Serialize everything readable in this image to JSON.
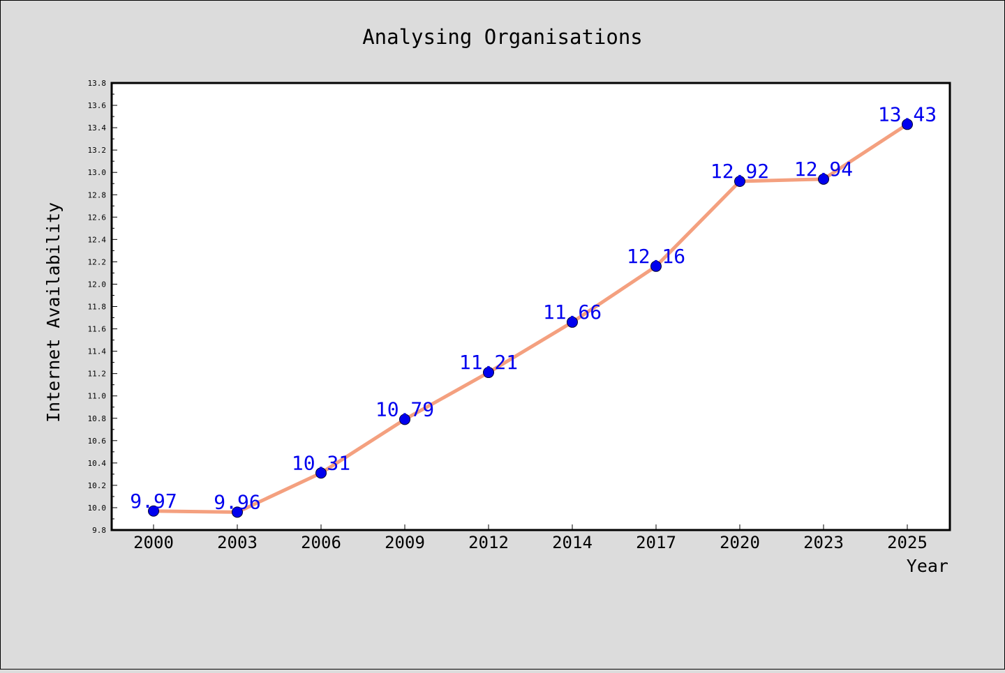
{
  "chart_data": {
    "type": "line",
    "title": "Analysing Organisations",
    "xlabel": "Year",
    "ylabel": "Internet Availability",
    "categories": [
      "2000",
      "2003",
      "2006",
      "2009",
      "2012",
      "2014",
      "2017",
      "2020",
      "2023",
      "2025"
    ],
    "series": [
      {
        "values": [
          9.97,
          9.96,
          10.31,
          10.79,
          11.21,
          11.66,
          12.16,
          12.92,
          12.94,
          13.43
        ],
        "labels": [
          "9.97",
          "9.96",
          "10.31",
          "10.79",
          "11.21",
          "11.66",
          "12.16",
          "12.92",
          "12.94",
          "13.43"
        ]
      }
    ],
    "ylim": [
      9.8,
      13.8
    ],
    "yticks": [
      "9.8",
      "10.0",
      "10.2",
      "10.4",
      "10.6",
      "10.8",
      "11.0",
      "11.2",
      "11.4",
      "11.6",
      "11.8",
      "12.0",
      "12.2",
      "12.4",
      "12.6",
      "12.8",
      "13.0",
      "13.2",
      "13.4",
      "13.6",
      "13.8"
    ],
    "grid": false,
    "colors": {
      "background": "#dcdcdc",
      "plot_area": "#ffffff",
      "line": "#f4a07f",
      "marker": "#0000ee",
      "data_label": "#0000ee"
    }
  }
}
